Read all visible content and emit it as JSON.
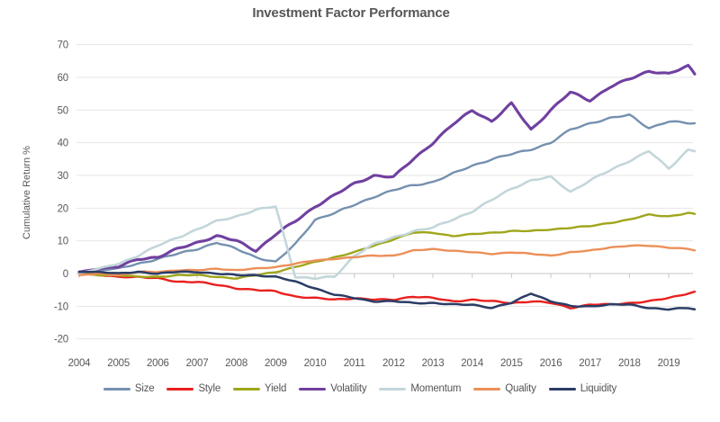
{
  "title": "Investment Factor Performance",
  "y_axis": {
    "label": "Cumulative Return %",
    "ticks": [
      70,
      60,
      50,
      40,
      30,
      20,
      10,
      0,
      -10,
      -20
    ]
  },
  "x_axis": {
    "ticks": [
      "2004",
      "2005",
      "2006",
      "2007",
      "2008",
      "2009",
      "2010",
      "2011",
      "2012",
      "2013",
      "2014",
      "2015",
      "2016",
      "2017",
      "2018",
      "2019"
    ]
  },
  "colors": {
    "grid": "#e6e6e6",
    "axis": "#c6c6c6",
    "text": "#595959",
    "title_text": "#57575a"
  },
  "chart_data": {
    "type": "line",
    "title": "Investment Factor Performance",
    "xlabel": "",
    "ylabel": "Cumulative Return %",
    "ylim": [
      -20,
      70
    ],
    "xlim": [
      2004,
      2019.7
    ],
    "grid": true,
    "legend_position": "bottom",
    "x": [
      2004,
      2004.5,
      2005,
      2005.5,
      2006,
      2006.5,
      2007,
      2007.5,
      2008,
      2008.5,
      2009,
      2009.5,
      2010,
      2010.5,
      2011,
      2011.5,
      2012,
      2012.5,
      2013,
      2013.5,
      2014,
      2014.5,
      2015,
      2015.5,
      2016,
      2016.5,
      2017,
      2017.5,
      2018,
      2018.5,
      2019,
      2019.5,
      2019.7
    ],
    "series": [
      {
        "name": "Size",
        "color": "#7590af",
        "values": [
          0,
          1,
          1.5,
          3,
          4.5,
          6,
          7.5,
          9.5,
          7.5,
          5,
          3.5,
          9,
          16.5,
          18.5,
          21,
          23.5,
          25.5,
          27,
          28,
          30.5,
          33,
          35,
          36.5,
          38,
          40,
          44,
          46,
          47.5,
          48.5,
          44.5,
          46.5,
          46,
          46
        ]
      },
      {
        "name": "Style",
        "color": "#e8201e",
        "values": [
          0,
          -0.5,
          -1,
          -1,
          -1.5,
          -2.5,
          -2.5,
          -3.5,
          -4.5,
          -5,
          -5.5,
          -7,
          -7.5,
          -8,
          -7.5,
          -8,
          -8,
          -7,
          -7.5,
          -8.5,
          -8,
          -8.5,
          -9,
          -8.5,
          -9,
          -10.5,
          -9.5,
          -9.5,
          -9,
          -8.5,
          -7.5,
          -6,
          -5.5
        ]
      },
      {
        "name": "Yield",
        "color": "#9fa61b",
        "values": [
          0,
          -0.5,
          -0.5,
          -1,
          -1,
          -0.5,
          -0.5,
          -1,
          -1.5,
          -0.5,
          0.5,
          2,
          3.5,
          5,
          6.5,
          8.5,
          10.5,
          12.5,
          12.5,
          11.5,
          12,
          12.5,
          13,
          13,
          13.5,
          14,
          14.5,
          15.5,
          16.5,
          18,
          17.5,
          18.5,
          18
        ]
      },
      {
        "name": "Volatility",
        "color": "#7040a0",
        "values": [
          0.5,
          1.5,
          2,
          4.5,
          5,
          7.5,
          9.5,
          11.5,
          10,
          7,
          12,
          16,
          20.5,
          24,
          27.5,
          30,
          29.5,
          35,
          40,
          45.5,
          50,
          46.5,
          52,
          44,
          50,
          55.5,
          53,
          57,
          59.5,
          62,
          61,
          63.5,
          60.5
        ]
      },
      {
        "name": "Momentum",
        "color": "#c3d6da",
        "values": [
          0,
          1.5,
          3,
          5.5,
          8.5,
          11,
          13.5,
          16,
          17.5,
          19.5,
          20.5,
          -1,
          -1.5,
          -1,
          5.5,
          9,
          11,
          13,
          14,
          16.5,
          19,
          22.5,
          26,
          28.5,
          29.5,
          25,
          28.5,
          31.5,
          34.5,
          37.5,
          32,
          38,
          37.5
        ]
      },
      {
        "name": "Quality",
        "color": "#ec8f58",
        "values": [
          -0.5,
          0,
          -0.5,
          0.5,
          0.5,
          1,
          1,
          1.5,
          1,
          1.5,
          2,
          3,
          4,
          4.5,
          5,
          5.5,
          5.5,
          7,
          7.5,
          7,
          6.5,
          6,
          6.5,
          6,
          5.5,
          6.5,
          7,
          8,
          8.5,
          8.5,
          8,
          7.5,
          7
        ]
      },
      {
        "name": "Liquidity",
        "color": "#2b3d66",
        "values": [
          0.5,
          0.5,
          0,
          0.5,
          0,
          0.5,
          0.5,
          0,
          -0.5,
          -0.5,
          -1,
          -2.5,
          -4.5,
          -6.5,
          -7.5,
          -8.5,
          -8.5,
          -9,
          -9,
          -9.5,
          -9.5,
          -10.5,
          -9,
          -6,
          -8.5,
          -10,
          -10,
          -9.5,
          -9.5,
          -10.5,
          -11,
          -10.5,
          -11
        ]
      }
    ]
  }
}
